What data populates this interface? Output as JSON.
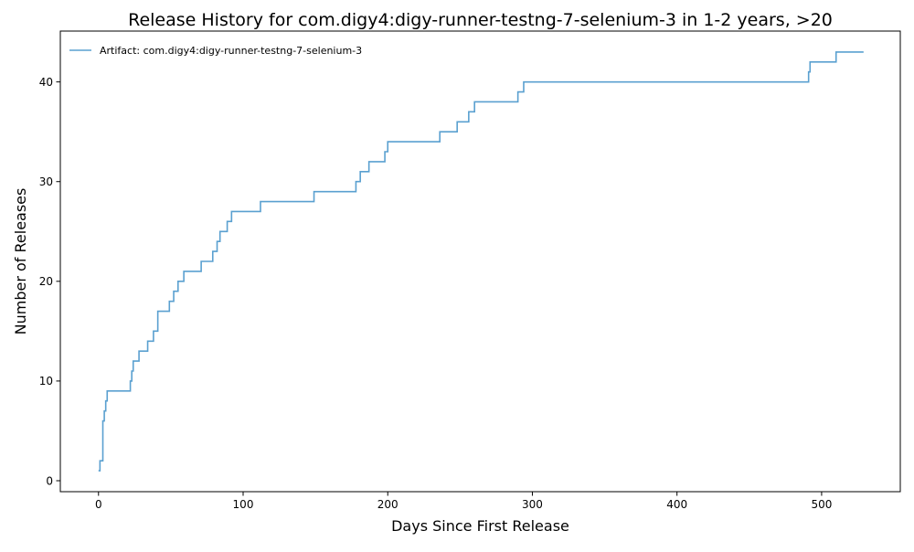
{
  "chart_data": {
    "type": "line",
    "title": "Release History for com.digy4:digy-runner-testng-7-selenium-3 in 1-2 years, >20",
    "xlabel": "Days Since First Release",
    "ylabel": "Number of Releases",
    "xlim": [
      -26.4,
      554.4
    ],
    "ylim": [
      -1.1,
      45.1
    ],
    "xticks": [
      0,
      100,
      200,
      300,
      400,
      500
    ],
    "yticks": [
      0,
      10,
      20,
      30,
      40
    ],
    "grid": false,
    "legend_position": "top-left",
    "step": "post",
    "series": [
      {
        "name": "Artifact: com.digy4:digy-runner-testng-7-selenium-3",
        "color": "#5aa0d0",
        "x": [
          0,
          1,
          3,
          4,
          5,
          6,
          22,
          23,
          24,
          25,
          28,
          34,
          38,
          41,
          49,
          52,
          53,
          55,
          59,
          71,
          79,
          82,
          84,
          89,
          92,
          112,
          149,
          178,
          181,
          187,
          198,
          199,
          200,
          236,
          248,
          256,
          260,
          290,
          294,
          491,
          492,
          510,
          529
        ],
        "y": [
          1,
          2,
          6,
          7,
          8,
          9,
          10,
          11,
          12,
          12,
          13,
          14,
          15,
          17,
          18,
          19,
          19,
          20,
          21,
          22,
          23,
          24,
          25,
          26,
          27,
          28,
          29,
          30,
          31,
          32,
          33,
          33,
          34,
          35,
          36,
          37,
          38,
          39,
          40,
          41,
          42,
          43,
          43
        ]
      }
    ]
  }
}
